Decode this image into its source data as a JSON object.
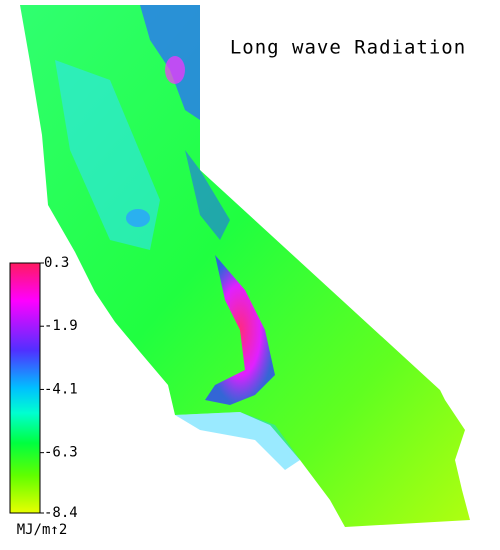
{
  "title": "Long wave Radiation",
  "colorbar": {
    "lim": [
      -8.4,
      0.3
    ],
    "ticks": [
      0.3,
      -1.9,
      -4.1,
      -6.3,
      -8.4
    ],
    "unit": "MJ/m↑2"
  }
}
